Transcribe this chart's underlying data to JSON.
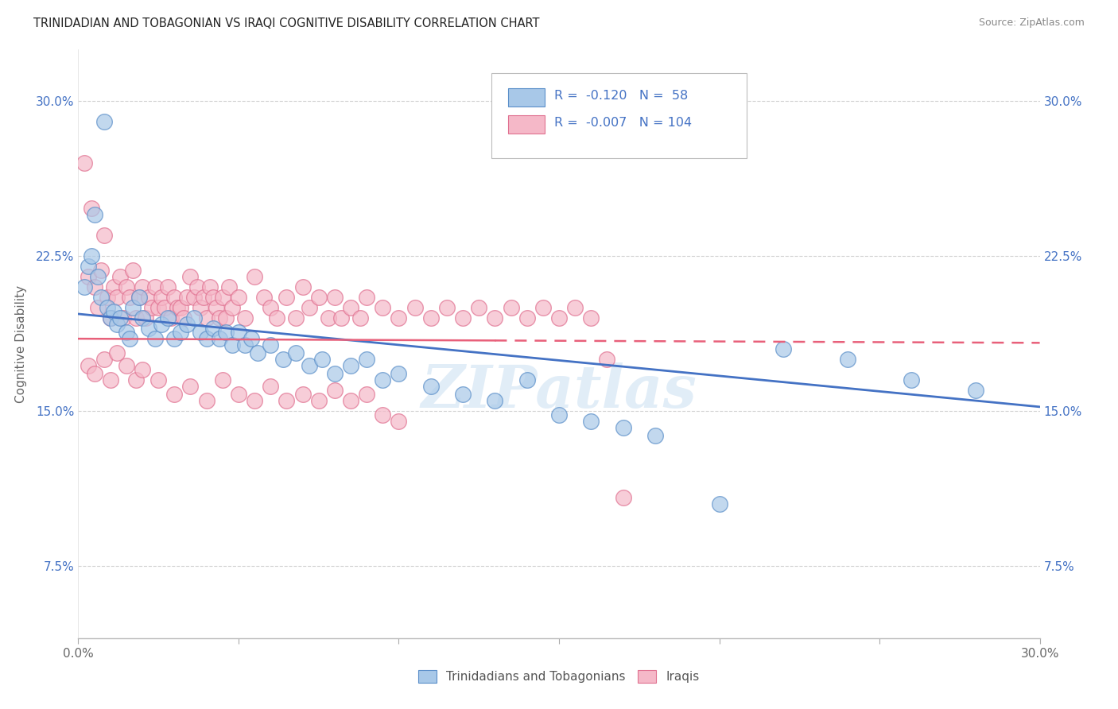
{
  "title": "TRINIDADIAN AND TOBAGONIAN VS IRAQI COGNITIVE DISABILITY CORRELATION CHART",
  "source": "Source: ZipAtlas.com",
  "ylabel": "Cognitive Disability",
  "watermark": "ZIPatlas",
  "xlim": [
    0.0,
    0.3
  ],
  "ylim": [
    0.04,
    0.325
  ],
  "xticks": [
    0.0,
    0.05,
    0.1,
    0.15,
    0.2,
    0.25,
    0.3
  ],
  "xtick_labels": [
    "0.0%",
    "",
    "",
    "",
    "",
    "",
    "30.0%"
  ],
  "yticks": [
    0.075,
    0.15,
    0.225,
    0.3
  ],
  "ytick_labels": [
    "7.5%",
    "15.0%",
    "22.5%",
    "30.0%"
  ],
  "blue_R": -0.12,
  "blue_N": 58,
  "pink_R": -0.007,
  "pink_N": 104,
  "blue_color": "#A8C8E8",
  "pink_color": "#F5B8C8",
  "blue_edge_color": "#5B8FC9",
  "pink_edge_color": "#E07090",
  "blue_line_color": "#4472C4",
  "pink_line_color": "#E8607A",
  "legend_blue_label": "Trinidadians and Tobagonians",
  "legend_pink_label": "Iraqis",
  "blue_scatter_x": [
    0.008,
    0.003,
    0.002,
    0.005,
    0.004,
    0.006,
    0.007,
    0.009,
    0.01,
    0.011,
    0.012,
    0.013,
    0.015,
    0.016,
    0.017,
    0.019,
    0.02,
    0.022,
    0.024,
    0.026,
    0.028,
    0.03,
    0.032,
    0.034,
    0.036,
    0.038,
    0.04,
    0.042,
    0.044,
    0.046,
    0.048,
    0.05,
    0.052,
    0.054,
    0.056,
    0.06,
    0.064,
    0.068,
    0.072,
    0.076,
    0.08,
    0.085,
    0.09,
    0.095,
    0.1,
    0.11,
    0.12,
    0.13,
    0.14,
    0.15,
    0.16,
    0.17,
    0.18,
    0.2,
    0.22,
    0.24,
    0.26,
    0.28
  ],
  "blue_scatter_y": [
    0.29,
    0.22,
    0.21,
    0.245,
    0.225,
    0.215,
    0.205,
    0.2,
    0.195,
    0.198,
    0.192,
    0.195,
    0.188,
    0.185,
    0.2,
    0.205,
    0.195,
    0.19,
    0.185,
    0.192,
    0.195,
    0.185,
    0.188,
    0.192,
    0.195,
    0.188,
    0.185,
    0.19,
    0.185,
    0.188,
    0.182,
    0.188,
    0.182,
    0.185,
    0.178,
    0.182,
    0.175,
    0.178,
    0.172,
    0.175,
    0.168,
    0.172,
    0.175,
    0.165,
    0.168,
    0.162,
    0.158,
    0.155,
    0.165,
    0.148,
    0.145,
    0.142,
    0.138,
    0.105,
    0.18,
    0.175,
    0.165,
    0.16
  ],
  "pink_scatter_x": [
    0.002,
    0.003,
    0.004,
    0.005,
    0.006,
    0.007,
    0.008,
    0.009,
    0.01,
    0.011,
    0.012,
    0.013,
    0.014,
    0.015,
    0.016,
    0.017,
    0.018,
    0.019,
    0.02,
    0.021,
    0.022,
    0.023,
    0.024,
    0.025,
    0.026,
    0.027,
    0.028,
    0.029,
    0.03,
    0.031,
    0.032,
    0.033,
    0.034,
    0.035,
    0.036,
    0.037,
    0.038,
    0.039,
    0.04,
    0.041,
    0.042,
    0.043,
    0.044,
    0.045,
    0.046,
    0.047,
    0.048,
    0.05,
    0.052,
    0.055,
    0.058,
    0.06,
    0.062,
    0.065,
    0.068,
    0.07,
    0.072,
    0.075,
    0.078,
    0.08,
    0.082,
    0.085,
    0.088,
    0.09,
    0.095,
    0.1,
    0.105,
    0.11,
    0.115,
    0.12,
    0.125,
    0.13,
    0.135,
    0.14,
    0.145,
    0.15,
    0.155,
    0.16,
    0.165,
    0.17,
    0.003,
    0.005,
    0.008,
    0.01,
    0.012,
    0.015,
    0.018,
    0.02,
    0.025,
    0.03,
    0.035,
    0.04,
    0.045,
    0.05,
    0.055,
    0.06,
    0.065,
    0.07,
    0.075,
    0.08,
    0.085,
    0.09,
    0.095,
    0.1
  ],
  "pink_scatter_y": [
    0.27,
    0.215,
    0.248,
    0.21,
    0.2,
    0.218,
    0.235,
    0.205,
    0.195,
    0.21,
    0.205,
    0.215,
    0.195,
    0.21,
    0.205,
    0.218,
    0.195,
    0.205,
    0.21,
    0.195,
    0.205,
    0.2,
    0.21,
    0.2,
    0.205,
    0.2,
    0.21,
    0.195,
    0.205,
    0.2,
    0.2,
    0.195,
    0.205,
    0.215,
    0.205,
    0.21,
    0.2,
    0.205,
    0.195,
    0.21,
    0.205,
    0.2,
    0.195,
    0.205,
    0.195,
    0.21,
    0.2,
    0.205,
    0.195,
    0.215,
    0.205,
    0.2,
    0.195,
    0.205,
    0.195,
    0.21,
    0.2,
    0.205,
    0.195,
    0.205,
    0.195,
    0.2,
    0.195,
    0.205,
    0.2,
    0.195,
    0.2,
    0.195,
    0.2,
    0.195,
    0.2,
    0.195,
    0.2,
    0.195,
    0.2,
    0.195,
    0.2,
    0.195,
    0.175,
    0.108,
    0.172,
    0.168,
    0.175,
    0.165,
    0.178,
    0.172,
    0.165,
    0.17,
    0.165,
    0.158,
    0.162,
    0.155,
    0.165,
    0.158,
    0.155,
    0.162,
    0.155,
    0.158,
    0.155,
    0.16,
    0.155,
    0.158,
    0.148,
    0.145
  ]
}
